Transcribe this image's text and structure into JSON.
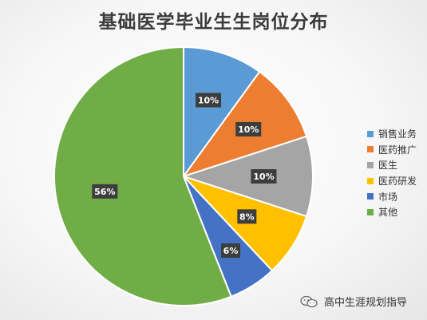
{
  "chart_data": {
    "type": "pie",
    "title": "基础医学毕业生生岗位分布",
    "categories": [
      "销售业务",
      "医药推广",
      "医生",
      "医药研发",
      "市场",
      "其他"
    ],
    "values": [
      10,
      10,
      10,
      8,
      6,
      56
    ],
    "labels": [
      "10%",
      "10%",
      "10%",
      "8%",
      "6%",
      "56%"
    ],
    "colors": [
      "#5B9BD5",
      "#ED7D31",
      "#A5A5A5",
      "#FFC000",
      "#4472C4",
      "#70AD47"
    ],
    "legend_position": "right"
  },
  "watermark": {
    "text": "高中生涯规划指导",
    "icon": "wechat-icon"
  }
}
